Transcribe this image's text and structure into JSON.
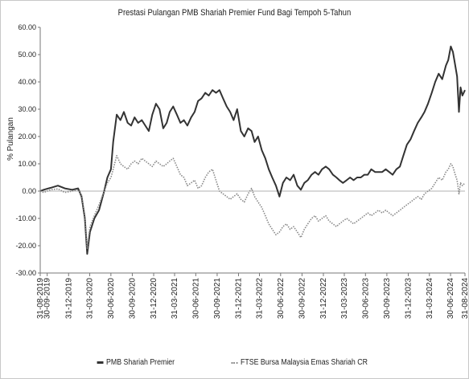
{
  "chart_data": {
    "type": "line",
    "title": "Prestasi Pulangan PMB Shariah Premier Fund Bagi Tempoh 5-Tahun",
    "xlabel": "",
    "ylabel": "% Pulangan",
    "ylim": [
      -30,
      60
    ],
    "yticks": [
      "60.00",
      "50.00",
      "40.00",
      "30.00",
      "20.00",
      "10.00",
      "0.00",
      "-10.00",
      "-20.00",
      "-30.00"
    ],
    "xlim": [
      "2019-08-31",
      "2024-08-31"
    ],
    "x_ticks": [
      {
        "date": "2019-08-31",
        "label": "31-08-2019"
      },
      {
        "date": "2019-09-30",
        "label": "30-09-2019"
      },
      {
        "date": "2019-12-31",
        "label": "31-12-2019"
      },
      {
        "date": "2020-03-31",
        "label": "31-03-2020"
      },
      {
        "date": "2020-06-30",
        "label": "30-06-2020"
      },
      {
        "date": "2020-09-30",
        "label": "30-09-2020"
      },
      {
        "date": "2020-12-31",
        "label": "31-12-2020"
      },
      {
        "date": "2021-03-31",
        "label": "31-03-2021"
      },
      {
        "date": "2021-06-30",
        "label": "30-06-2021"
      },
      {
        "date": "2021-09-30",
        "label": "30-09-2021"
      },
      {
        "date": "2021-12-31",
        "label": "31-12-2021"
      },
      {
        "date": "2022-03-31",
        "label": "31-03-2022"
      },
      {
        "date": "2022-06-30",
        "label": "30-06-2022"
      },
      {
        "date": "2022-09-30",
        "label": "30-09-2022"
      },
      {
        "date": "2022-12-31",
        "label": "31-12-2022"
      },
      {
        "date": "2023-03-31",
        "label": "31-03-2023"
      },
      {
        "date": "2023-06-30",
        "label": "30-06-2023"
      },
      {
        "date": "2023-09-30",
        "label": "30-09-2023"
      },
      {
        "date": "2023-12-31",
        "label": "31-12-2023"
      },
      {
        "date": "2024-03-31",
        "label": "31-03-2024"
      },
      {
        "date": "2024-06-30",
        "label": "30-06-2024"
      },
      {
        "date": "2024-08-31",
        "label": "31-08-2024"
      }
    ],
    "grid": false,
    "legend": "bottom",
    "series": [
      {
        "name": "PMB Shariah Premier",
        "color": "#333333",
        "style": "solid",
        "points": [
          [
            "2019-08-31",
            0
          ],
          [
            "2019-09-15",
            0.5
          ],
          [
            "2019-10-15",
            1.2
          ],
          [
            "2019-11-15",
            2.0
          ],
          [
            "2019-12-15",
            1.0
          ],
          [
            "2020-01-15",
            0.5
          ],
          [
            "2020-02-10",
            1.0
          ],
          [
            "2020-02-25",
            -2.0
          ],
          [
            "2020-03-10",
            -10.0
          ],
          [
            "2020-03-20",
            -23.0
          ],
          [
            "2020-04-01",
            -15.0
          ],
          [
            "2020-04-20",
            -10.0
          ],
          [
            "2020-05-10",
            -7.0
          ],
          [
            "2020-06-01",
            0.0
          ],
          [
            "2020-06-15",
            5.0
          ],
          [
            "2020-06-30",
            8.0
          ],
          [
            "2020-07-10",
            18.0
          ],
          [
            "2020-07-25",
            28.0
          ],
          [
            "2020-08-10",
            26.0
          ],
          [
            "2020-08-25",
            29.0
          ],
          [
            "2020-09-10",
            25.0
          ],
          [
            "2020-09-25",
            24.0
          ],
          [
            "2020-10-10",
            27.0
          ],
          [
            "2020-10-25",
            25.0
          ],
          [
            "2020-11-10",
            26.0
          ],
          [
            "2020-11-25",
            24.0
          ],
          [
            "2020-12-10",
            22.0
          ],
          [
            "2020-12-25",
            28.0
          ],
          [
            "2021-01-10",
            32.0
          ],
          [
            "2021-01-25",
            30.0
          ],
          [
            "2021-02-10",
            23.0
          ],
          [
            "2021-02-25",
            25.0
          ],
          [
            "2021-03-10",
            29.0
          ],
          [
            "2021-03-25",
            31.0
          ],
          [
            "2021-04-10",
            28.0
          ],
          [
            "2021-04-25",
            25.0
          ],
          [
            "2021-05-10",
            26.0
          ],
          [
            "2021-05-25",
            24.0
          ],
          [
            "2021-06-10",
            27.0
          ],
          [
            "2021-06-25",
            29.0
          ],
          [
            "2021-07-10",
            33.0
          ],
          [
            "2021-07-25",
            34.0
          ],
          [
            "2021-08-10",
            36.0
          ],
          [
            "2021-08-25",
            35.0
          ],
          [
            "2021-09-10",
            37.0
          ],
          [
            "2021-09-25",
            36.0
          ],
          [
            "2021-10-10",
            37.0
          ],
          [
            "2021-10-25",
            34.0
          ],
          [
            "2021-11-10",
            31.0
          ],
          [
            "2021-11-25",
            29.0
          ],
          [
            "2021-12-10",
            26.0
          ],
          [
            "2021-12-25",
            30.0
          ],
          [
            "2022-01-10",
            22.0
          ],
          [
            "2022-01-25",
            20.0
          ],
          [
            "2022-02-10",
            23.0
          ],
          [
            "2022-02-25",
            22.0
          ],
          [
            "2022-03-10",
            18.0
          ],
          [
            "2022-03-25",
            20.0
          ],
          [
            "2022-04-10",
            15.0
          ],
          [
            "2022-04-25",
            12.0
          ],
          [
            "2022-05-10",
            8.0
          ],
          [
            "2022-05-25",
            5.0
          ],
          [
            "2022-06-10",
            2.0
          ],
          [
            "2022-06-25",
            -2.0
          ],
          [
            "2022-07-10",
            3.0
          ],
          [
            "2022-07-25",
            5.0
          ],
          [
            "2022-08-10",
            4.0
          ],
          [
            "2022-08-25",
            6.0
          ],
          [
            "2022-09-10",
            2.0
          ],
          [
            "2022-09-25",
            0.5
          ],
          [
            "2022-10-10",
            3.0
          ],
          [
            "2022-10-25",
            4.0
          ],
          [
            "2022-11-10",
            6.0
          ],
          [
            "2022-11-25",
            7.0
          ],
          [
            "2022-12-10",
            6.0
          ],
          [
            "2022-12-25",
            8.0
          ],
          [
            "2023-01-10",
            9.0
          ],
          [
            "2023-01-25",
            8.0
          ],
          [
            "2023-02-10",
            6.0
          ],
          [
            "2023-02-25",
            5.0
          ],
          [
            "2023-03-10",
            4.0
          ],
          [
            "2023-03-25",
            3.0
          ],
          [
            "2023-04-10",
            4.0
          ],
          [
            "2023-04-25",
            5.0
          ],
          [
            "2023-05-10",
            4.0
          ],
          [
            "2023-05-25",
            5.0
          ],
          [
            "2023-06-10",
            5.0
          ],
          [
            "2023-06-25",
            6.0
          ],
          [
            "2023-07-10",
            6.0
          ],
          [
            "2023-07-25",
            8.0
          ],
          [
            "2023-08-10",
            7.0
          ],
          [
            "2023-08-25",
            7.0
          ],
          [
            "2023-09-10",
            7.0
          ],
          [
            "2023-09-25",
            8.0
          ],
          [
            "2023-10-10",
            7.0
          ],
          [
            "2023-10-25",
            6.0
          ],
          [
            "2023-11-10",
            8.0
          ],
          [
            "2023-11-25",
            9.0
          ],
          [
            "2023-12-10",
            13.0
          ],
          [
            "2023-12-25",
            17.0
          ],
          [
            "2024-01-10",
            19.0
          ],
          [
            "2024-01-25",
            22.0
          ],
          [
            "2024-02-10",
            25.0
          ],
          [
            "2024-02-25",
            27.0
          ],
          [
            "2024-03-10",
            29.0
          ],
          [
            "2024-03-25",
            32.0
          ],
          [
            "2024-04-10",
            36.0
          ],
          [
            "2024-04-25",
            40.0
          ],
          [
            "2024-05-10",
            43.0
          ],
          [
            "2024-05-25",
            41.0
          ],
          [
            "2024-06-10",
            46.0
          ],
          [
            "2024-06-20",
            48.0
          ],
          [
            "2024-07-01",
            53.0
          ],
          [
            "2024-07-10",
            51.0
          ],
          [
            "2024-07-20",
            46.0
          ],
          [
            "2024-07-28",
            42.0
          ],
          [
            "2024-08-05",
            29.0
          ],
          [
            "2024-08-12",
            38.0
          ],
          [
            "2024-08-20",
            35.0
          ],
          [
            "2024-08-31",
            37.0
          ]
        ]
      },
      {
        "name": "FTSE Bursa Malaysia Emas Shariah CR",
        "color": "#888888",
        "style": "dotted",
        "points": [
          [
            "2019-08-31",
            0
          ],
          [
            "2019-09-15",
            -0.5
          ],
          [
            "2019-10-15",
            0.5
          ],
          [
            "2019-11-15",
            0.8
          ],
          [
            "2019-12-15",
            -0.5
          ],
          [
            "2020-01-15",
            0.0
          ],
          [
            "2020-02-10",
            0.5
          ],
          [
            "2020-02-25",
            -1.5
          ],
          [
            "2020-03-10",
            -9.0
          ],
          [
            "2020-03-20",
            -21.0
          ],
          [
            "2020-04-01",
            -13.0
          ],
          [
            "2020-04-20",
            -9.0
          ],
          [
            "2020-05-10",
            -5.0
          ],
          [
            "2020-06-01",
            0.0
          ],
          [
            "2020-06-15",
            3.0
          ],
          [
            "2020-06-30",
            5.0
          ],
          [
            "2020-07-10",
            8.0
          ],
          [
            "2020-07-25",
            13.0
          ],
          [
            "2020-08-10",
            10.0
          ],
          [
            "2020-08-25",
            9.0
          ],
          [
            "2020-09-10",
            8.0
          ],
          [
            "2020-09-25",
            10.0
          ],
          [
            "2020-10-10",
            11.0
          ],
          [
            "2020-10-25",
            10.0
          ],
          [
            "2020-11-10",
            12.0
          ],
          [
            "2020-11-25",
            11.0
          ],
          [
            "2020-12-10",
            10.0
          ],
          [
            "2020-12-25",
            9.0
          ],
          [
            "2021-01-10",
            11.0
          ],
          [
            "2021-01-25",
            10.0
          ],
          [
            "2021-02-10",
            9.0
          ],
          [
            "2021-02-25",
            10.0
          ],
          [
            "2021-03-10",
            11.0
          ],
          [
            "2021-03-25",
            12.0
          ],
          [
            "2021-04-10",
            9.0
          ],
          [
            "2021-04-25",
            6.0
          ],
          [
            "2021-05-10",
            5.0
          ],
          [
            "2021-05-25",
            2.0
          ],
          [
            "2021-06-10",
            3.0
          ],
          [
            "2021-06-25",
            4.0
          ],
          [
            "2021-07-10",
            1.0
          ],
          [
            "2021-07-25",
            2.0
          ],
          [
            "2021-08-10",
            5.0
          ],
          [
            "2021-08-25",
            7.0
          ],
          [
            "2021-09-10",
            8.0
          ],
          [
            "2021-09-25",
            4.0
          ],
          [
            "2021-10-10",
            0.0
          ],
          [
            "2021-10-25",
            -1.0
          ],
          [
            "2021-11-10",
            -2.0
          ],
          [
            "2021-11-25",
            -3.0
          ],
          [
            "2021-12-10",
            -2.0
          ],
          [
            "2021-12-25",
            -1.0
          ],
          [
            "2022-01-10",
            -3.0
          ],
          [
            "2022-01-25",
            -4.0
          ],
          [
            "2022-02-10",
            -1.0
          ],
          [
            "2022-02-25",
            1.0
          ],
          [
            "2022-03-10",
            -2.0
          ],
          [
            "2022-03-25",
            -4.0
          ],
          [
            "2022-04-10",
            -6.0
          ],
          [
            "2022-04-25",
            -9.0
          ],
          [
            "2022-05-10",
            -12.0
          ],
          [
            "2022-05-25",
            -14.0
          ],
          [
            "2022-06-10",
            -16.0
          ],
          [
            "2022-06-25",
            -15.0
          ],
          [
            "2022-07-10",
            -13.0
          ],
          [
            "2022-07-25",
            -12.0
          ],
          [
            "2022-08-10",
            -14.0
          ],
          [
            "2022-08-25",
            -13.0
          ],
          [
            "2022-09-10",
            -15.0
          ],
          [
            "2022-09-25",
            -17.0
          ],
          [
            "2022-10-10",
            -14.0
          ],
          [
            "2022-10-25",
            -12.0
          ],
          [
            "2022-11-10",
            -10.0
          ],
          [
            "2022-11-25",
            -9.0
          ],
          [
            "2022-12-10",
            -11.0
          ],
          [
            "2022-12-25",
            -10.0
          ],
          [
            "2023-01-10",
            -9.0
          ],
          [
            "2023-01-25",
            -11.0
          ],
          [
            "2023-02-10",
            -12.0
          ],
          [
            "2023-02-25",
            -13.0
          ],
          [
            "2023-03-10",
            -12.0
          ],
          [
            "2023-03-25",
            -11.0
          ],
          [
            "2023-04-10",
            -10.0
          ],
          [
            "2023-04-25",
            -11.0
          ],
          [
            "2023-05-10",
            -12.0
          ],
          [
            "2023-05-25",
            -11.0
          ],
          [
            "2023-06-10",
            -10.0
          ],
          [
            "2023-06-25",
            -9.0
          ],
          [
            "2023-07-10",
            -8.0
          ],
          [
            "2023-07-25",
            -9.0
          ],
          [
            "2023-08-10",
            -8.0
          ],
          [
            "2023-08-25",
            -7.0
          ],
          [
            "2023-09-10",
            -8.0
          ],
          [
            "2023-09-25",
            -7.0
          ],
          [
            "2023-10-10",
            -8.0
          ],
          [
            "2023-10-25",
            -9.0
          ],
          [
            "2023-11-10",
            -8.0
          ],
          [
            "2023-11-25",
            -7.0
          ],
          [
            "2023-12-10",
            -6.0
          ],
          [
            "2023-12-25",
            -5.0
          ],
          [
            "2024-01-10",
            -4.0
          ],
          [
            "2024-01-25",
            -3.0
          ],
          [
            "2024-02-10",
            -2.0
          ],
          [
            "2024-02-25",
            -3.0
          ],
          [
            "2024-03-10",
            -1.0
          ],
          [
            "2024-03-25",
            0.0
          ],
          [
            "2024-04-10",
            1.0
          ],
          [
            "2024-04-25",
            3.0
          ],
          [
            "2024-05-10",
            5.0
          ],
          [
            "2024-05-25",
            4.0
          ],
          [
            "2024-06-10",
            7.0
          ],
          [
            "2024-06-20",
            8.0
          ],
          [
            "2024-07-01",
            10.0
          ],
          [
            "2024-07-10",
            9.0
          ],
          [
            "2024-07-20",
            6.0
          ],
          [
            "2024-07-28",
            4.0
          ],
          [
            "2024-08-05",
            -1.0
          ],
          [
            "2024-08-12",
            3.0
          ],
          [
            "2024-08-20",
            2.0
          ],
          [
            "2024-08-31",
            3.0
          ]
        ]
      }
    ]
  }
}
